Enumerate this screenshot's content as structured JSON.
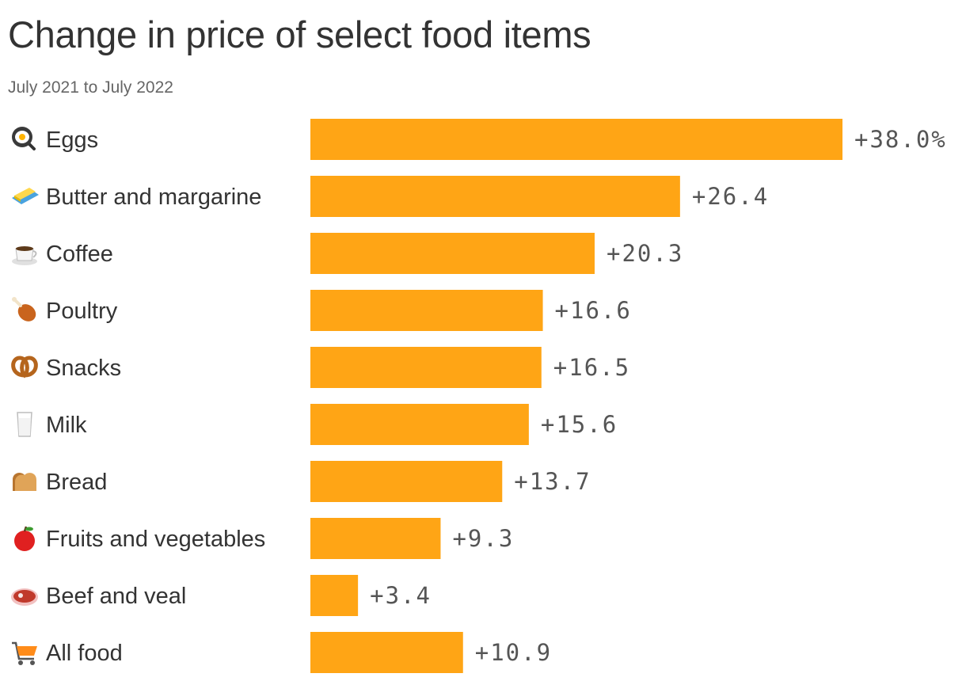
{
  "chart_data": {
    "type": "bar",
    "orientation": "horizontal",
    "title": "Change in price of select food items",
    "subtitle": "July 2021 to July 2022",
    "categories": [
      "Eggs",
      "Butter and margarine",
      "Coffee",
      "Poultry",
      "Snacks",
      "Milk",
      "Bread",
      "Fruits and vegetables",
      "Beef and veal",
      "All food"
    ],
    "icons": [
      "fried-egg-pan-icon",
      "butter-icon",
      "coffee-cup-icon",
      "poultry-leg-icon",
      "pretzel-icon",
      "milk-glass-icon",
      "bread-loaf-icon",
      "red-apple-icon",
      "steak-icon",
      "shopping-cart-icon"
    ],
    "values": [
      38.0,
      26.4,
      20.3,
      16.6,
      16.5,
      15.6,
      13.7,
      9.3,
      3.4,
      10.9
    ],
    "value_labels": [
      "+38.0%",
      "+26.4",
      "+20.3",
      "+16.6",
      "+16.5",
      "+15.6",
      "+13.7",
      "+9.3",
      "+3.4",
      "+10.9"
    ],
    "xlim": [
      0,
      38
    ],
    "bar_color": "#ffa515",
    "grid": false,
    "legend": "none"
  }
}
